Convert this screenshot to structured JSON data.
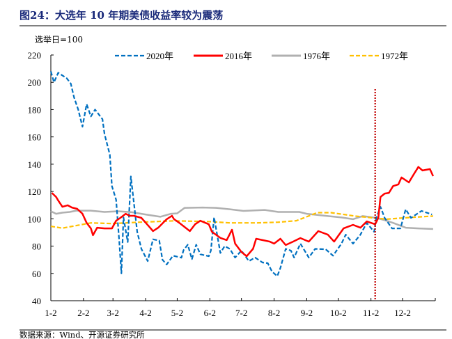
{
  "title": "图24：大选年 10 年期美债收益率较为震荡",
  "source": "数据来源：Wind、开源证券研究所",
  "chart_data": {
    "type": "line",
    "ylabel": "选举日=100",
    "ylim": [
      40,
      220
    ],
    "yticks": [
      "40",
      "60",
      "80",
      "100",
      "120",
      "140",
      "160",
      "180",
      "200",
      "220"
    ],
    "xticks": [
      "1-2",
      "2-2",
      "3-2",
      "4-2",
      "5-2",
      "6-2",
      "7-2",
      "8-2",
      "9-2",
      "10-2",
      "11-2",
      "12-2"
    ],
    "legend_position": "top",
    "grid": false,
    "election_marker": {
      "x": "11-6",
      "color": "#c00000",
      "style": "dotted"
    },
    "series": [
      {
        "name": "2020年",
        "color": "#0070c0",
        "style": "dashed",
        "x": [
          "1-2",
          "1-5",
          "1-9",
          "1-17",
          "1-21",
          "1-24",
          "1-28",
          "2-1",
          "2-5",
          "2-9",
          "2-13",
          "2-20",
          "2-22",
          "2-27",
          "3-1",
          "3-5",
          "3-8",
          "3-10",
          "3-12",
          "3-16",
          "3-19",
          "3-22",
          "3-25",
          "3-29",
          "4-4",
          "4-9",
          "4-15",
          "4-18",
          "4-22",
          "4-28",
          "5-6",
          "5-8",
          "5-12",
          "5-16",
          "5-20",
          "5-24",
          "6-1",
          "6-3",
          "6-6",
          "6-12",
          "6-16",
          "6-21",
          "6-26",
          "7-2",
          "7-9",
          "7-15",
          "7-22",
          "7-27",
          "7-31",
          "8-5",
          "8-8",
          "8-13",
          "8-18",
          "8-21",
          "8-27",
          "9-4",
          "9-10",
          "9-20",
          "9-27",
          "10-5",
          "10-9",
          "10-16",
          "10-23",
          "10-29",
          "11-5",
          "11-7",
          "11-11",
          "11-15",
          "11-22",
          "11-30",
          "12-5",
          "12-10",
          "12-20",
          "12-30"
        ],
        "y": [
          208,
          200,
          207,
          203,
          199,
          189,
          180,
          167.5,
          184,
          175,
          180,
          173,
          162,
          147,
          124,
          114,
          83,
          60,
          101,
          83,
          131,
          111,
          90.5,
          78,
          69,
          85,
          84,
          70,
          66.5,
          73,
          71.5,
          77,
          81,
          70.5,
          81,
          74,
          72.6,
          76.7,
          101,
          75,
          80,
          78,
          71.6,
          76.7,
          69,
          71.6,
          68,
          67.5,
          61.4,
          58,
          64,
          78,
          76.7,
          71.6,
          81.8,
          71.6,
          78,
          77.7,
          73,
          81.8,
          88.4,
          81.8,
          88.4,
          97,
          90.5,
          100.7,
          108.8,
          100.7,
          93,
          93,
          107,
          100.7,
          105.8,
          103.2
        ]
      },
      {
        "name": "2016年",
        "color": "#ff0000",
        "style": "solid",
        "x": [
          "1-3",
          "1-7",
          "1-9",
          "1-13",
          "1-18",
          "1-22",
          "1-27",
          "2-1",
          "2-5",
          "2-9",
          "2-11",
          "2-15",
          "2-22",
          "3-1",
          "3-5",
          "3-9",
          "3-14",
          "3-18",
          "3-22",
          "3-29",
          "4-5",
          "4-9",
          "4-14",
          "4-22",
          "4-27",
          "4-29",
          "5-4",
          "5-8",
          "5-14",
          "5-19",
          "5-24",
          "6-1",
          "6-4",
          "6-12",
          "6-18",
          "6-23",
          "6-26",
          "7-2",
          "7-7",
          "7-13",
          "7-16",
          "7-22",
          "7-29",
          "8-2",
          "8-8",
          "8-13",
          "8-20",
          "8-27",
          "9-4",
          "9-13",
          "9-22",
          "9-28",
          "10-7",
          "10-16",
          "10-23",
          "10-29",
          "11-6",
          "11-9",
          "11-11",
          "11-15",
          "11-19",
          "11-23",
          "11-28",
          "12-1",
          "12-8",
          "12-12",
          "12-17",
          "12-21",
          "12-28",
          "12-31"
        ],
        "y": [
          119,
          116,
          113.4,
          108.8,
          109.9,
          108.3,
          107.3,
          103.7,
          97,
          93,
          88,
          93.5,
          93,
          93,
          98.6,
          100.7,
          103.7,
          102.2,
          102.2,
          100.7,
          94.6,
          91,
          93.5,
          99.7,
          102.2,
          99.7,
          97,
          94.6,
          91,
          96,
          98.6,
          96,
          90.5,
          86,
          84.4,
          92,
          81.8,
          75.7,
          72.6,
          78,
          85.4,
          84.4,
          83.3,
          81.8,
          85.4,
          80.8,
          83.3,
          85.9,
          83.3,
          91,
          88.4,
          83.3,
          93,
          95.6,
          93.5,
          98.1,
          96,
          100.7,
          116,
          118.5,
          119,
          124,
          125.2,
          130.3,
          126.7,
          131.8,
          138,
          135.4,
          136.4,
          131.3
        ]
      },
      {
        "name": "1976年",
        "color": "#b0b0b0",
        "style": "solid",
        "x": [
          "1-2",
          "1-7",
          "1-13",
          "1-20",
          "1-26",
          "2-9",
          "2-22",
          "3-7",
          "3-20",
          "4-3",
          "4-16",
          "4-26",
          "5-2",
          "5-9",
          "5-26",
          "6-8",
          "6-21",
          "7-4",
          "7-24",
          "8-6",
          "8-26",
          "9-2",
          "9-22",
          "10-5",
          "10-16",
          "10-25",
          "11-7",
          "11-15",
          "11-23",
          "12-5",
          "12-17",
          "12-31"
        ],
        "y": [
          105.5,
          103.7,
          104.5,
          105,
          106,
          106,
          105,
          105.5,
          104.8,
          103,
          101.5,
          103.7,
          104,
          108,
          108.3,
          108,
          107,
          105.8,
          106.5,
          105,
          105,
          103.7,
          102,
          101,
          99.7,
          102,
          100.7,
          99,
          97,
          93.5,
          93,
          92.5
        ]
      },
      {
        "name": "1972年",
        "color": "#ffc000",
        "style": "dashed",
        "x": [
          "1-2",
          "1-13",
          "1-26",
          "2-9",
          "3-1",
          "3-27",
          "4-29",
          "6-1",
          "6-21",
          "7-17",
          "8-6",
          "8-23",
          "9-2",
          "9-12",
          "9-25",
          "10-18",
          "10-31",
          "11-17",
          "12-3",
          "12-31"
        ],
        "y": [
          94.5,
          93.2,
          95,
          97,
          96.5,
          97.5,
          98.5,
          98,
          97,
          97,
          97.5,
          98.6,
          101.5,
          104.5,
          104.5,
          102,
          101,
          99.7,
          100.7,
          102
        ]
      }
    ]
  }
}
